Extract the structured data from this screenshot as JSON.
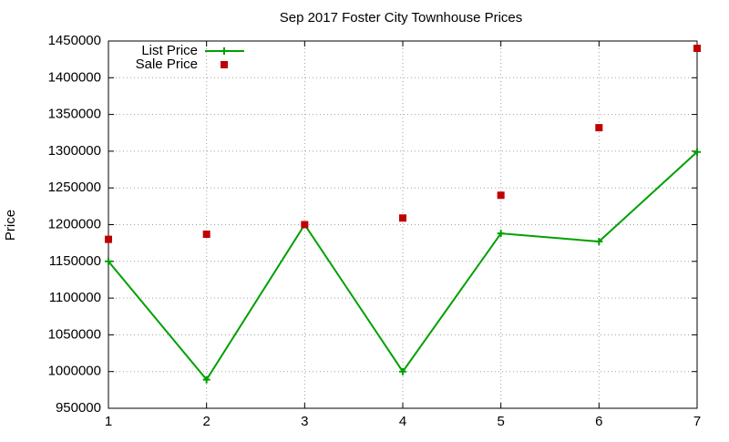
{
  "chart_data": {
    "type": "line",
    "title": "Sep 2017 Foster City Townhouse Prices",
    "y_label": "Price",
    "x": [
      1,
      2,
      3,
      4,
      5,
      6,
      7
    ],
    "series": [
      {
        "name": "List Price",
        "color": "#00a000",
        "style": "linespoints",
        "values": [
          1150000,
          989000,
          1200000,
          1000000,
          1188000,
          1177000,
          1299000
        ]
      },
      {
        "name": "Sale Price",
        "color": "#c00000",
        "style": "points",
        "values": [
          1180000,
          1187000,
          1200000,
          1209000,
          1240000,
          1332000,
          1440000
        ]
      }
    ],
    "xlim": [
      1,
      7
    ],
    "xticks": [
      1,
      2,
      3,
      4,
      5,
      6,
      7
    ],
    "ylim": [
      950000,
      1450000
    ],
    "yticks": [
      950000,
      1000000,
      1050000,
      1100000,
      1150000,
      1200000,
      1250000,
      1300000,
      1350000,
      1400000,
      1450000
    ],
    "grid": true,
    "legend": "top-left"
  }
}
